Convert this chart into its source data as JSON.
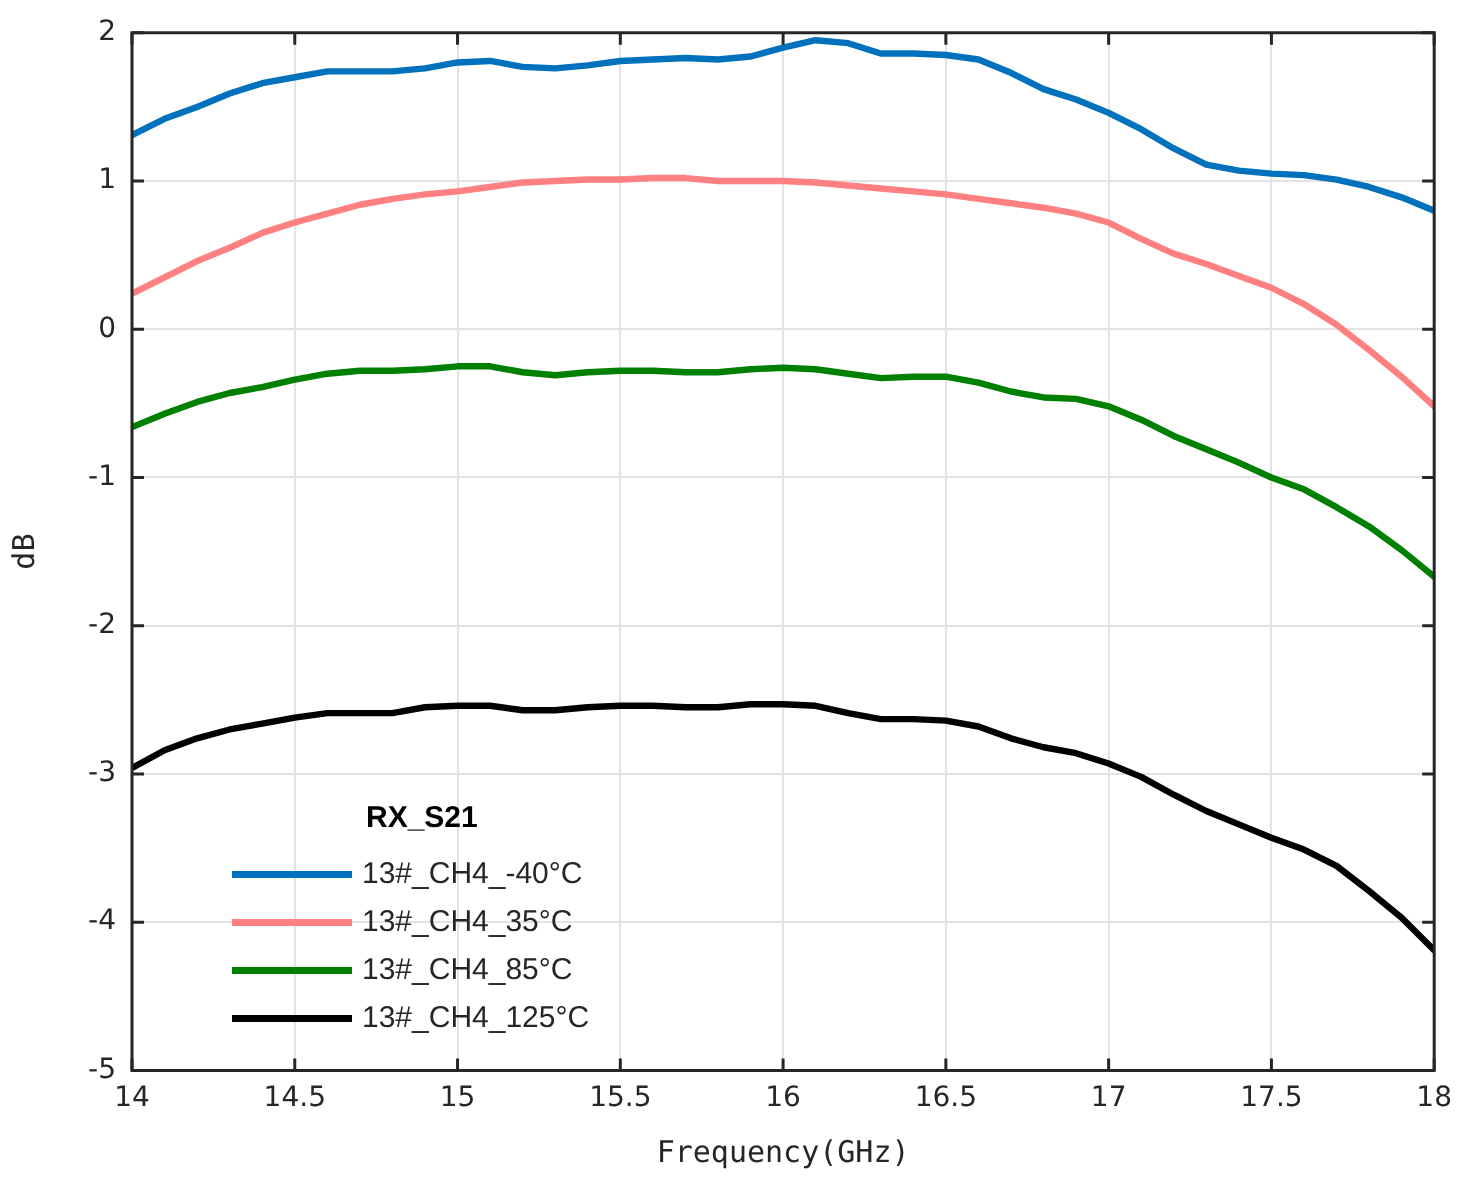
{
  "chart_data": {
    "type": "line",
    "xlabel": "Frequency(GHz)",
    "ylabel": "dB",
    "legend_title": "RX_S21",
    "legend": "bottom left",
    "grid": true,
    "marker": "none",
    "line_style": "solid",
    "xlim": [
      14,
      18
    ],
    "xticks": [
      14,
      14.5,
      15,
      15.5,
      16,
      16.5,
      17,
      17.5,
      18
    ],
    "ylim": [
      -5,
      2
    ],
    "yticks": [
      -5,
      -4,
      -3,
      -2,
      -1,
      0,
      1,
      2
    ],
    "x": [
      14,
      14.1,
      14.2,
      14.3,
      14.4,
      14.5,
      14.6,
      14.7,
      14.8,
      14.9,
      15,
      15.1,
      15.2,
      15.3,
      15.4,
      15.5,
      15.6,
      15.7,
      15.8,
      15.9,
      16,
      16.1,
      16.2,
      16.3,
      16.4,
      16.5,
      16.6,
      16.7,
      16.8,
      16.9,
      17,
      17.1,
      17.2,
      17.3,
      17.4,
      17.5,
      17.6,
      17.7,
      17.8,
      17.9,
      18
    ],
    "series": [
      {
        "name": "13#_CH4_-40°C",
        "color": "#0072bd",
        "values": [
          1.31,
          1.42,
          1.5,
          1.59,
          1.66,
          1.7,
          1.74,
          1.74,
          1.74,
          1.76,
          1.8,
          1.81,
          1.77,
          1.76,
          1.78,
          1.81,
          1.82,
          1.83,
          1.82,
          1.84,
          1.9,
          1.95,
          1.93,
          1.86,
          1.86,
          1.85,
          1.82,
          1.73,
          1.62,
          1.55,
          1.46,
          1.35,
          1.22,
          1.11,
          1.07,
          1.05,
          1.04,
          1.01,
          0.96,
          0.89,
          0.8
        ]
      },
      {
        "name": "13#_CH4_35°C",
        "color": "#ff8080",
        "values": [
          0.24,
          0.35,
          0.46,
          0.55,
          0.65,
          0.72,
          0.78,
          0.84,
          0.88,
          0.91,
          0.93,
          0.96,
          0.99,
          1.0,
          1.01,
          1.01,
          1.02,
          1.02,
          1.0,
          1.0,
          1.0,
          0.99,
          0.97,
          0.95,
          0.93,
          0.91,
          0.88,
          0.85,
          0.82,
          0.78,
          0.72,
          0.61,
          0.51,
          0.44,
          0.36,
          0.28,
          0.17,
          0.03,
          -0.14,
          -0.32,
          -0.52
        ]
      },
      {
        "name": "13#_CH4_85°C",
        "color": "#008000",
        "values": [
          -0.66,
          -0.57,
          -0.49,
          -0.43,
          -0.39,
          -0.34,
          -0.3,
          -0.28,
          -0.28,
          -0.27,
          -0.25,
          -0.25,
          -0.29,
          -0.31,
          -0.29,
          -0.28,
          -0.28,
          -0.29,
          -0.29,
          -0.27,
          -0.26,
          -0.27,
          -0.3,
          -0.33,
          -0.32,
          -0.32,
          -0.36,
          -0.42,
          -0.46,
          -0.47,
          -0.52,
          -0.61,
          -0.72,
          -0.81,
          -0.9,
          -1.0,
          -1.08,
          -1.2,
          -1.33,
          -1.49,
          -1.67
        ]
      },
      {
        "name": "13#_CH4_125°C",
        "color": "#000000",
        "values": [
          -2.96,
          -2.84,
          -2.76,
          -2.7,
          -2.66,
          -2.62,
          -2.59,
          -2.59,
          -2.59,
          -2.55,
          -2.54,
          -2.54,
          -2.57,
          -2.57,
          -2.55,
          -2.54,
          -2.54,
          -2.55,
          -2.55,
          -2.53,
          -2.53,
          -2.54,
          -2.59,
          -2.63,
          -2.63,
          -2.64,
          -2.68,
          -2.76,
          -2.82,
          -2.86,
          -2.93,
          -3.02,
          -3.14,
          -3.25,
          -3.34,
          -3.43,
          -3.51,
          -3.62,
          -3.79,
          -3.97,
          -4.19
        ]
      }
    ]
  }
}
